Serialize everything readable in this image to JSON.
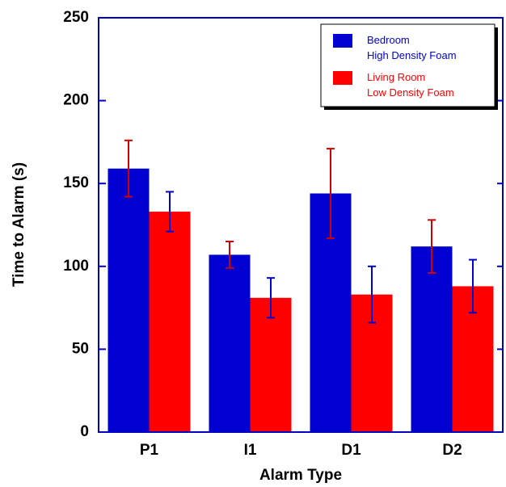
{
  "chart_data": {
    "type": "bar",
    "x_label": "Alarm Type",
    "y_label": "Time to Alarm (s)",
    "categories": [
      "P1",
      "I1",
      "D1",
      "D2"
    ],
    "series": [
      {
        "name": "Bedroom\nHigh Density Foam",
        "color": "#0000d0",
        "error_color": "#d00000",
        "values": [
          159,
          107,
          144,
          112
        ],
        "errors": [
          17,
          8,
          27,
          16
        ]
      },
      {
        "name": "Living Room\nLow Density Foam",
        "color": "#ff0000",
        "error_color": "#0000d0",
        "values": [
          133,
          81,
          83,
          88
        ],
        "errors": [
          12,
          12,
          17,
          16
        ]
      }
    ],
    "ylim": [
      0,
      250
    ],
    "yticks": [
      0,
      50,
      100,
      150,
      200,
      250
    ],
    "axis_color": "#0000c0",
    "legend": "upper right"
  }
}
